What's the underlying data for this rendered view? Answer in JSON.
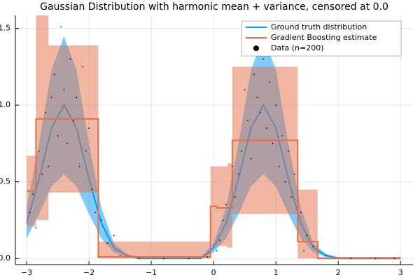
{
  "chart_data": {
    "type": "line",
    "title": "Gaussian Distribution with harmonic mean + variance, censored at 0.0",
    "xlim": [
      -3.18,
      3.2
    ],
    "ylim": [
      -0.04,
      1.585
    ],
    "xticks": [
      {
        "value": -3,
        "label": "−3"
      },
      {
        "value": -2,
        "label": "−2"
      },
      {
        "value": -1,
        "label": "−1"
      },
      0,
      1,
      2,
      3
    ],
    "yticks": [
      {
        "value": 0,
        "label": "0.0"
      },
      0.5,
      {
        "value": 1,
        "label": "1.0"
      },
      1.5
    ],
    "grid": true,
    "legend": "top-right",
    "series": [
      {
        "name": "Ground truth distribution",
        "color": "#009AFA",
        "band_color": "#009AFA",
        "x": [
          -3,
          -2.8,
          -2.6,
          -2.4,
          -2.2,
          -2.0,
          -1.8,
          -1.6,
          -1.4,
          -1.2,
          -1.0,
          -0.8,
          -0.6,
          -0.4,
          -0.2,
          0,
          0.2,
          0.4,
          0.6,
          0.8,
          1.0,
          1.2,
          1.4,
          1.6,
          1.8,
          2.0,
          2.2,
          2.4,
          2.6,
          2.8,
          3.0
        ],
        "values": [
          0.23,
          0.52,
          0.85,
          1.0,
          0.85,
          0.52,
          0.23,
          0.07,
          0.02,
          0.0,
          0,
          0,
          0,
          0,
          0,
          0.07,
          0.23,
          0.52,
          0.85,
          1.0,
          0.85,
          0.52,
          0.23,
          0.07,
          0.02,
          0,
          0,
          0,
          0,
          0,
          0
        ],
        "lower": [
          0.13,
          0.29,
          0.47,
          0.55,
          0.47,
          0.29,
          0.13,
          0.04,
          0.01,
          0,
          0,
          0,
          0,
          0,
          0,
          0.04,
          0.13,
          0.29,
          0.47,
          0.55,
          0.47,
          0.29,
          0.13,
          0.04,
          0.01,
          0,
          0,
          0,
          0,
          0,
          0
        ],
        "upper": [
          0.33,
          0.75,
          1.23,
          1.45,
          1.23,
          0.75,
          0.33,
          0.1,
          0.03,
          0.01,
          0.01,
          0.01,
          0.01,
          0.01,
          0.01,
          0.1,
          0.33,
          0.75,
          1.23,
          1.45,
          1.23,
          0.75,
          0.33,
          0.1,
          0.03,
          0.01,
          0.01,
          0.01,
          0.01,
          0.01,
          0.01
        ]
      },
      {
        "name": "Gradient Boosting estimate",
        "color": "#E36F47",
        "band_color": "#E36F47",
        "step": "post",
        "x": [
          -3,
          -2.85,
          -2.65,
          -1.85,
          -0.05,
          0.05,
          0.22,
          0.3,
          1.35,
          1.55,
          1.67,
          3
        ],
        "values": [
          0.44,
          0.91,
          0.91,
          0.01,
          0.34,
          0.33,
          0.33,
          0.77,
          0.11,
          0.11,
          0.0,
          0.0
        ],
        "lower": [
          0.21,
          0.25,
          0.43,
          0.0,
          0.08,
          0.08,
          0.07,
          0.29,
          0.0,
          0.0,
          0.0,
          0.0
        ],
        "upper": [
          0.67,
          1.6,
          1.39,
          0.11,
          0.6,
          0.6,
          0.62,
          1.25,
          0.45,
          0.45,
          0.01,
          0.01
        ]
      }
    ],
    "scatter": {
      "name": "Data (n=200)",
      "color": "#000000",
      "x": [
        -2.95,
        -2.9,
        -2.85,
        -2.8,
        -2.75,
        -2.7,
        -2.65,
        -2.6,
        -2.55,
        -2.5,
        -2.45,
        -2.4,
        -2.35,
        -2.3,
        -2.25,
        -2.2,
        -2.15,
        -2.1,
        -2.05,
        -2.0,
        -1.95,
        -1.9,
        -1.8,
        -1.7,
        -1.6,
        -1.5,
        -1.2,
        -0.8,
        -0.4,
        -0.1,
        0.05,
        0.1,
        0.15,
        0.2,
        0.3,
        0.35,
        0.4,
        0.45,
        0.5,
        0.55,
        0.6,
        0.65,
        0.7,
        0.75,
        0.8,
        0.85,
        0.9,
        0.95,
        1.0,
        1.05,
        1.1,
        1.15,
        1.2,
        1.25,
        1.3,
        1.4,
        1.45,
        1.5,
        1.6,
        1.8,
        2.2,
        2.6,
        2.9
      ],
      "y": [
        0.3,
        0.42,
        0.2,
        0.7,
        0.55,
        0.95,
        0.6,
        1.05,
        1.2,
        0.8,
        1.51,
        1.1,
        0.75,
        1.3,
        0.9,
        1.05,
        0.6,
        1.25,
        0.7,
        0.85,
        0.45,
        0.3,
        0.25,
        0.1,
        0.15,
        0.02,
        0.0,
        0.0,
        0.0,
        0.01,
        0.05,
        0.12,
        0.25,
        0.35,
        0.6,
        0.4,
        0.55,
        0.7,
        1.1,
        0.9,
        0.65,
        1.2,
        1.05,
        0.95,
        1.3,
        0.85,
        1.15,
        0.75,
        1.0,
        0.6,
        0.8,
        0.5,
        0.7,
        0.4,
        0.55,
        0.3,
        0.05,
        0.15,
        0.08,
        0.02,
        0.0,
        0.0,
        0.0
      ]
    }
  }
}
